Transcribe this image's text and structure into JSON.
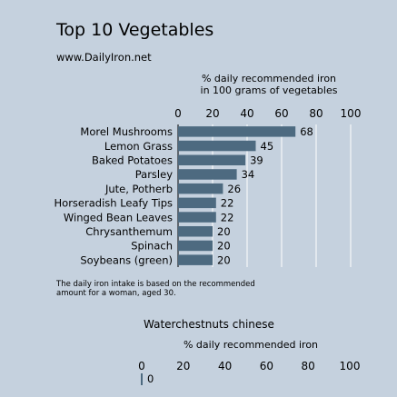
{
  "header": {
    "title": "Top 10 Vegetables",
    "subtitle": "www.DailyIron.net"
  },
  "chart_data": [
    {
      "type": "bar",
      "orientation": "horizontal",
      "xlabel_line1": "% daily recommended iron",
      "xlabel_line2": "in 100 grams of vegetables",
      "categories": [
        "Morel Mushrooms",
        "Lemon Grass",
        "Baked Potatoes",
        "Parsley",
        "Jute, Potherb",
        "Horseradish Leafy Tips",
        "Winged Bean Leaves",
        "Chrysanthemum",
        "Spinach",
        "Soybeans (green)"
      ],
      "values": [
        68,
        45,
        39,
        34,
        26,
        22,
        22,
        20,
        20,
        20
      ],
      "xlim": [
        0,
        100
      ],
      "ticks": [
        "0",
        "20",
        "40",
        "60",
        "80",
        "100"
      ],
      "grid": true,
      "bar_color": "#4d6a80"
    },
    {
      "type": "bar",
      "orientation": "horizontal",
      "title": "Waterchestnuts chinese",
      "xlabel": "% daily recommended iron",
      "categories": [
        ""
      ],
      "values": [
        0
      ],
      "xlim": [
        0,
        100
      ],
      "ticks": [
        "0",
        "20",
        "40",
        "60",
        "80",
        "100"
      ],
      "bar_color": "#4d6a80"
    }
  ],
  "footnote": {
    "line1": "The daily iron intake is based on the recommended",
    "line2": "amount for a woman, aged 30."
  }
}
